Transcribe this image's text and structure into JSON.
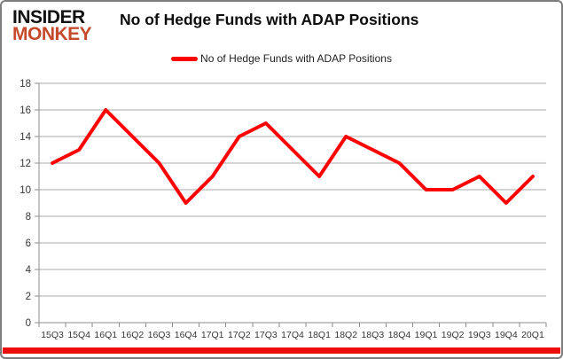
{
  "branding": {
    "line1": "INSIDER",
    "line2": "MONKEY",
    "monkey_color": "#c54a2c"
  },
  "header": {
    "title": "No of Hedge Funds with ADAP Positions"
  },
  "legend": {
    "label": "No of Hedge Funds with ADAP Positions",
    "swatch_color": "#ff0000"
  },
  "chart_data": {
    "type": "line",
    "title": "No of Hedge Funds with ADAP Positions",
    "categories": [
      "15Q3",
      "15Q4",
      "16Q1",
      "16Q2",
      "16Q3",
      "16Q4",
      "17Q1",
      "17Q2",
      "17Q3",
      "17Q4",
      "18Q1",
      "18Q2",
      "18Q3",
      "18Q4",
      "19Q1",
      "19Q2",
      "19Q3",
      "19Q4",
      "20Q1"
    ],
    "series": [
      {
        "name": "No of Hedge Funds with ADAP Positions",
        "color": "#ff0000",
        "values": [
          12,
          13,
          16,
          14,
          12,
          9,
          11,
          14,
          15,
          13,
          11,
          14,
          13,
          12,
          10,
          10,
          11,
          9,
          11
        ]
      }
    ],
    "ylim": [
      0,
      18
    ],
    "yticks": [
      0,
      2,
      4,
      6,
      8,
      10,
      12,
      14,
      16,
      18
    ],
    "grid": true,
    "legend_position": "top",
    "xlabel": "",
    "ylabel": ""
  },
  "colors": {
    "line": "#ff0000",
    "grid": "#a8a8a8",
    "axis": "#8e8e8e",
    "tick_text": "#363636",
    "bottom_bar": "#ec0d0d",
    "border": "#7d7d7d"
  }
}
